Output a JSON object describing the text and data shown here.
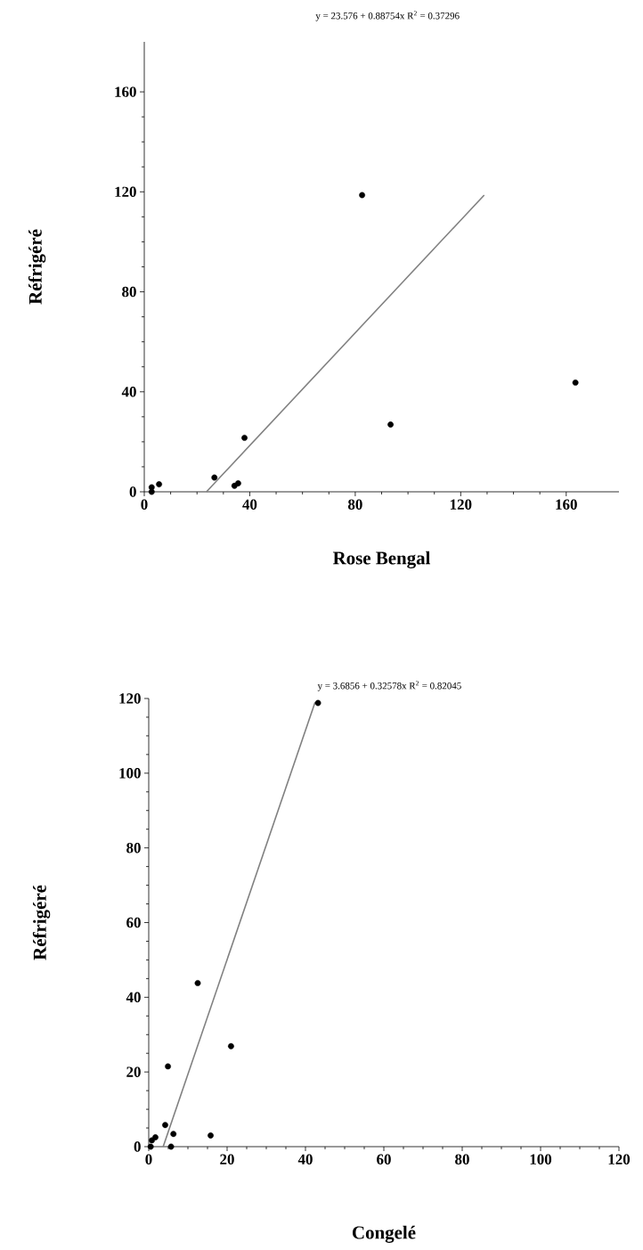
{
  "chart_data": [
    {
      "type": "scatter",
      "title": "y = 23.576 + 0.88754x R$^{2}$ = 0.37296",
      "xlabel": "Rose Bengal",
      "ylabel": "Réfrigéré",
      "xlim": [
        0,
        180
      ],
      "ylim": [
        0,
        180
      ],
      "xticks": [
        0,
        40,
        80,
        120,
        160
      ],
      "yticks": [
        0,
        40,
        80,
        120,
        160
      ],
      "grid": false,
      "series": [
        {
          "marker": "circle",
          "color": "#000000",
          "x": [
            2.8,
            2.8,
            5.6,
            26.6,
            34.2,
            35.6,
            38,
            82.6,
            93.4,
            163.5
          ],
          "values": [
            1.8,
            0,
            3,
            5.7,
            2.4,
            3.4,
            21.6,
            118.7,
            26.9,
            43.7
          ]
        },
        {
          "type": "line",
          "marker": "none",
          "color": "#808080",
          "x": [
            23.576,
            128.9
          ],
          "values": [
            0,
            118.7
          ]
        }
      ]
    },
    {
      "type": "scatter",
      "title": "y = 3.6856 + 0.32578x R$^{2}$ = 0.82045",
      "xlabel": "Congelé",
      "ylabel": "Réfrigéré",
      "xlim": [
        0,
        120
      ],
      "ylim": [
        0,
        120
      ],
      "xticks": [
        0,
        20,
        40,
        60,
        80,
        100,
        120
      ],
      "yticks": [
        0,
        20,
        40,
        60,
        80,
        100,
        120
      ],
      "grid": false,
      "series": [
        {
          "marker": "circle",
          "color": "#000000",
          "x": [
            0.5,
            0.8,
            1.7,
            4.2,
            4.9,
            5.7,
            6.3,
            12.5,
            15.8,
            21.0,
            43.2
          ],
          "values": [
            0,
            1.7,
            2.5,
            5.8,
            21.5,
            0,
            3.4,
            43.8,
            3.0,
            26.9,
            118.8
          ]
        },
        {
          "type": "line",
          "marker": "none",
          "color": "#808080",
          "x": [
            3.6856,
            42.45
          ],
          "values": [
            0,
            119
          ]
        }
      ]
    }
  ]
}
